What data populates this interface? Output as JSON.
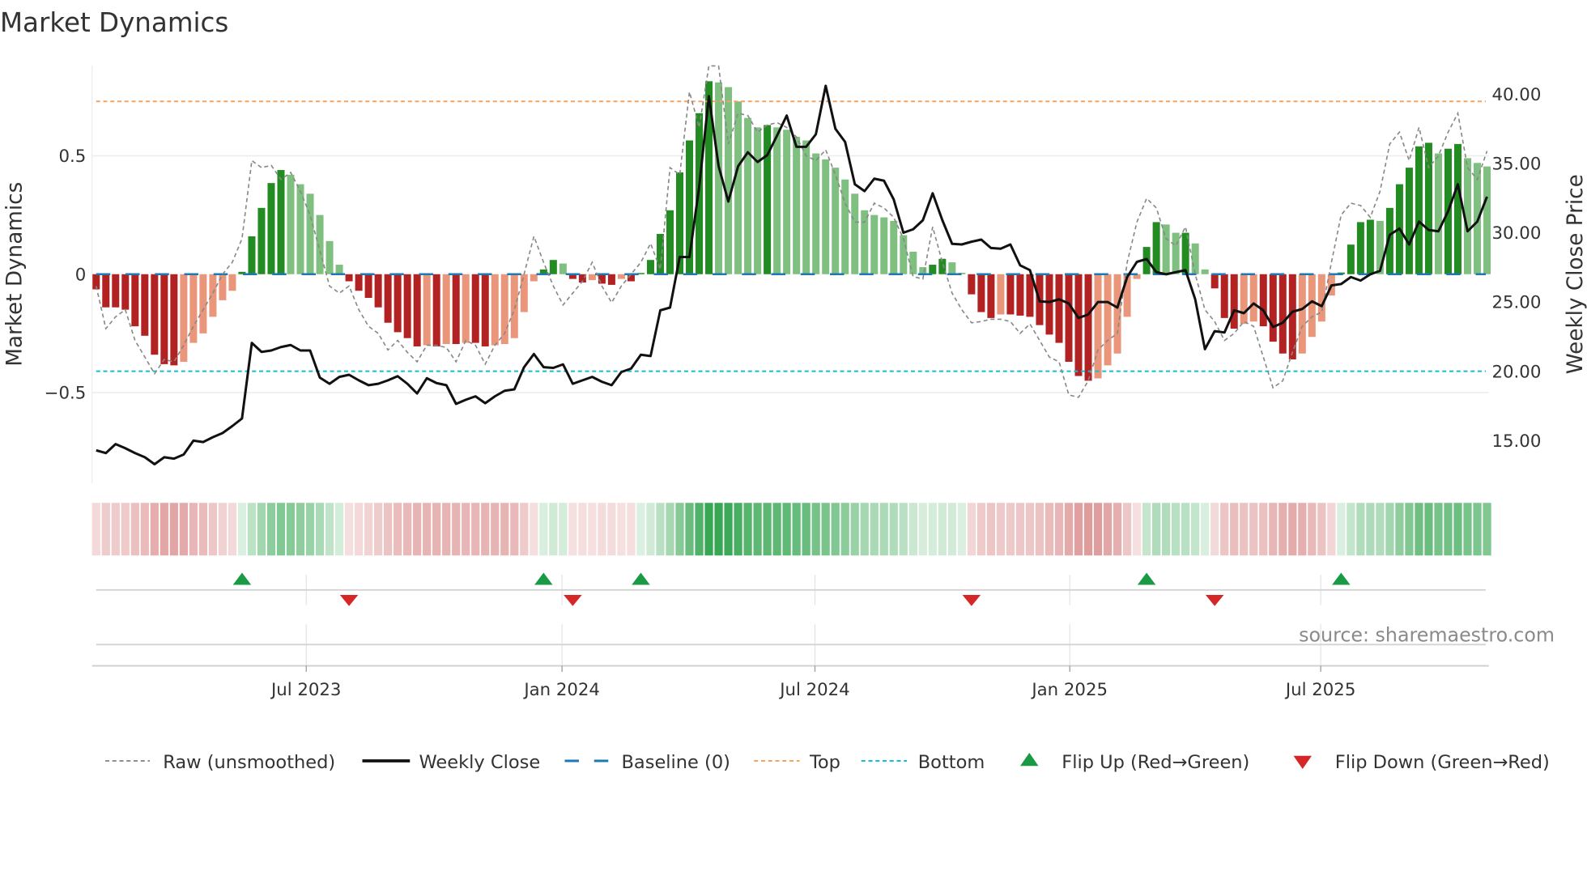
{
  "title": "Market Dynamics",
  "source": "source: sharemaestro.com",
  "colors": {
    "pos_strong": "#228b22",
    "pos_weak": "#7fbf7f",
    "neg_strong": "#b22222",
    "neg_weak": "#e9967a",
    "close": "#111111",
    "raw": "#888888",
    "baseline": "#1f77b4",
    "top": "#f4a460",
    "bottom": "#17becf",
    "flip_up": "#1a9a45",
    "flip_down": "#d62728",
    "heat_pos": "40,160,70",
    "heat_neg": "200,80,80"
  },
  "chart_data": {
    "type": "bar",
    "title": "Market Dynamics",
    "ylabel": "Market Dynamics",
    "y2label": "Weekly Close Price",
    "ylim": [
      -0.885,
      0.88
    ],
    "y2lim": [
      11.9,
      42.0
    ],
    "yticks": [
      {
        "v": 0.5,
        "label": "0.5"
      },
      {
        "v": 0,
        "label": "0"
      },
      {
        "v": -0.5,
        "label": "−0.5"
      }
    ],
    "y2ticks": [
      {
        "v": 40,
        "label": "40.00"
      },
      {
        "v": 35,
        "label": "35.00"
      },
      {
        "v": 30,
        "label": "30.00"
      },
      {
        "v": 25,
        "label": "25.00"
      },
      {
        "v": 20,
        "label": "20.00"
      },
      {
        "v": 15,
        "label": "15.00"
      }
    ],
    "xticks": [
      {
        "week": 21.6,
        "label": "Jul 2023"
      },
      {
        "week": 47.9,
        "label": "Jan 2024"
      },
      {
        "week": 73.9,
        "label": "Jul 2024"
      },
      {
        "week": 100.1,
        "label": "Jan 2025"
      },
      {
        "week": 125.9,
        "label": "Jul 2025"
      }
    ],
    "top_level": 0.73,
    "bottom_level": -0.41,
    "baseline": 0,
    "values": [
      -0.064,
      -0.14,
      -0.14,
      -0.15,
      -0.22,
      -0.26,
      -0.34,
      -0.38,
      -0.385,
      -0.37,
      -0.29,
      -0.25,
      -0.18,
      -0.11,
      -0.07,
      0.01,
      0.16,
      0.28,
      0.385,
      0.44,
      0.42,
      0.38,
      0.34,
      0.25,
      0.14,
      0.04,
      -0.03,
      -0.07,
      -0.1,
      -0.14,
      -0.205,
      -0.245,
      -0.27,
      -0.305,
      -0.3,
      -0.305,
      -0.295,
      -0.295,
      -0.29,
      -0.29,
      -0.305,
      -0.3,
      -0.295,
      -0.27,
      -0.16,
      -0.03,
      0.02,
      0.06,
      0.045,
      -0.02,
      -0.035,
      -0.025,
      -0.04,
      -0.045,
      -0.02,
      -0.03,
      0.005,
      0.06,
      0.17,
      0.27,
      0.43,
      0.565,
      0.68,
      0.815,
      0.81,
      0.79,
      0.73,
      0.66,
      0.62,
      0.63,
      0.62,
      0.61,
      0.58,
      0.565,
      0.51,
      0.485,
      0.45,
      0.4,
      0.34,
      0.27,
      0.25,
      0.24,
      0.225,
      0.165,
      0.095,
      0.03,
      0.04,
      0.065,
      0.05,
      0.006,
      -0.085,
      -0.16,
      -0.185,
      -0.17,
      -0.17,
      -0.175,
      -0.18,
      -0.215,
      -0.255,
      -0.29,
      -0.37,
      -0.43,
      -0.45,
      -0.44,
      -0.385,
      -0.335,
      -0.18,
      -0.02,
      0.115,
      0.22,
      0.21,
      0.175,
      0.175,
      0.13,
      0.02,
      -0.06,
      -0.185,
      -0.23,
      -0.21,
      -0.2,
      -0.22,
      -0.285,
      -0.335,
      -0.36,
      -0.335,
      -0.265,
      -0.2,
      -0.09,
      0.007,
      0.125,
      0.22,
      0.23,
      0.225,
      0.28,
      0.38,
      0.45,
      0.54,
      0.555,
      0.51,
      0.53,
      0.55,
      0.49,
      0.47,
      0.455
    ],
    "raw": [
      -0.05,
      -0.23,
      -0.18,
      -0.15,
      -0.28,
      -0.35,
      -0.42,
      -0.36,
      -0.37,
      -0.3,
      -0.22,
      -0.15,
      -0.08,
      0.0,
      0.05,
      0.15,
      0.48,
      0.45,
      0.46,
      0.4,
      0.43,
      0.35,
      0.25,
      0.1,
      -0.05,
      -0.08,
      -0.05,
      -0.15,
      -0.22,
      -0.25,
      -0.32,
      -0.28,
      -0.33,
      -0.37,
      -0.3,
      -0.3,
      -0.31,
      -0.37,
      -0.28,
      -0.3,
      -0.38,
      -0.3,
      -0.25,
      -0.15,
      0.0,
      0.16,
      0.05,
      -0.05,
      -0.13,
      -0.08,
      -0.03,
      0.05,
      -0.05,
      -0.12,
      -0.05,
      0.0,
      0.05,
      0.13,
      0.02,
      0.45,
      0.42,
      0.77,
      0.62,
      0.88,
      0.88,
      0.55,
      0.68,
      0.67,
      0.6,
      0.63,
      0.64,
      0.62,
      0.58,
      0.5,
      0.48,
      0.525,
      0.42,
      0.3,
      0.22,
      0.22,
      0.3,
      0.28,
      0.24,
      0.15,
      -0.01,
      -0.02,
      0.2,
      0.05,
      -0.08,
      -0.15,
      -0.205,
      -0.2,
      -0.19,
      -0.19,
      -0.2,
      -0.25,
      -0.21,
      -0.28,
      -0.35,
      -0.37,
      -0.51,
      -0.52,
      -0.45,
      -0.32,
      -0.28,
      -0.25,
      0.05,
      0.22,
      0.32,
      0.28,
      0.15,
      0.12,
      0.2,
      0.0,
      -0.15,
      -0.2,
      -0.28,
      -0.25,
      -0.2,
      -0.22,
      -0.35,
      -0.48,
      -0.45,
      -0.33,
      -0.22,
      -0.18,
      -0.16,
      0.05,
      0.25,
      0.3,
      0.29,
      0.24,
      0.35,
      0.55,
      0.6,
      0.48,
      0.62,
      0.45,
      0.5,
      0.6,
      0.68,
      0.45,
      0.4,
      0.52
    ],
    "close": [
      14.3,
      14.1,
      14.75,
      14.45,
      14.1,
      13.8,
      13.3,
      13.8,
      13.7,
      14.0,
      15.0,
      14.9,
      15.25,
      15.55,
      16.05,
      16.6,
      22.05,
      21.4,
      21.5,
      21.75,
      21.9,
      21.5,
      21.5,
      19.55,
      19.1,
      19.6,
      19.75,
      19.35,
      19.0,
      19.1,
      19.35,
      19.65,
      19.1,
      18.4,
      19.5,
      19.15,
      19.0,
      17.65,
      17.95,
      18.2,
      17.7,
      18.2,
      18.6,
      18.7,
      20.3,
      21.25,
      20.3,
      20.25,
      20.5,
      19.1,
      19.35,
      19.6,
      19.25,
      19.0,
      19.95,
      20.2,
      21.2,
      21.1,
      24.4,
      24.6,
      28.25,
      28.25,
      33.3,
      39.85,
      34.8,
      32.25,
      34.8,
      35.8,
      35.1,
      35.6,
      37.0,
      38.45,
      36.2,
      36.2,
      37.1,
      40.6,
      37.5,
      36.55,
      33.5,
      33.0,
      33.9,
      33.75,
      32.4,
      30.0,
      30.25,
      30.9,
      32.85,
      30.9,
      29.2,
      29.15,
      29.35,
      29.5,
      28.9,
      28.85,
      29.15,
      27.65,
      27.3,
      25.05,
      25.0,
      25.2,
      24.9,
      23.85,
      24.1,
      25.0,
      25.0,
      24.6,
      26.8,
      27.9,
      28.1,
      27.15,
      27.0,
      27.15,
      27.3,
      25.2,
      21.6,
      22.9,
      22.8,
      24.4,
      24.2,
      24.9,
      24.4,
      23.2,
      23.5,
      24.3,
      24.5,
      25.05,
      24.7,
      26.2,
      26.3,
      26.8,
      26.55,
      27.0,
      27.25,
      29.85,
      30.3,
      29.15,
      30.8,
      30.2,
      30.1,
      31.55,
      33.5,
      30.1,
      30.8,
      32.6
    ],
    "flip_up_weeks": [
      15,
      46,
      56,
      108,
      128
    ],
    "flip_down_weeks": [
      26,
      49,
      90,
      115
    ],
    "legend": [
      {
        "key": "raw",
        "label": "Raw (unsmoothed)"
      },
      {
        "key": "close",
        "label": "Weekly Close"
      },
      {
        "key": "baseline",
        "label": "Baseline (0)"
      },
      {
        "key": "top",
        "label": "Top"
      },
      {
        "key": "bottom",
        "label": "Bottom"
      },
      {
        "key": "flip_up",
        "label": "Flip Up (Red→Green)"
      },
      {
        "key": "flip_down",
        "label": "Flip Down (Green→Red)"
      }
    ],
    "legend_position": "bottom",
    "grid": true
  }
}
